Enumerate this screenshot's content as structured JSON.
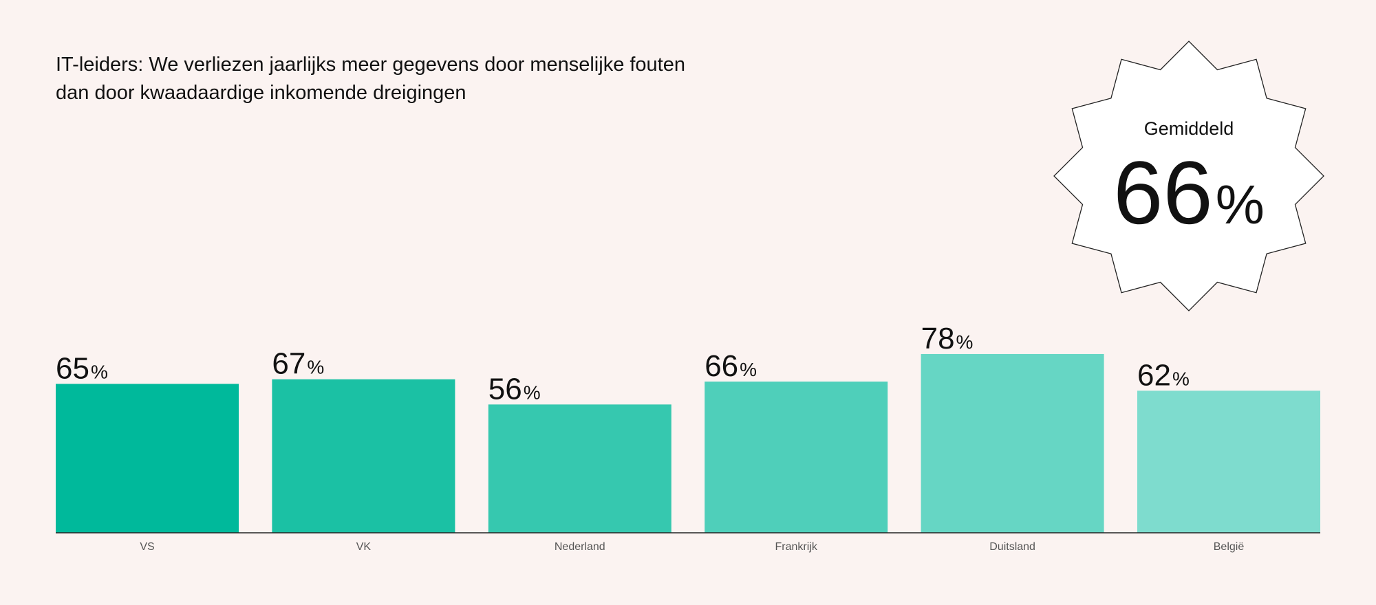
{
  "title_lines": [
    "IT-leiders: We verliezen jaarlijks meer gegevens door menselijke fouten",
    "dan door kwaadaardige inkomende dreigingen"
  ],
  "badge": {
    "label": "Gemiddeld",
    "value": "66",
    "unit": "%"
  },
  "chart_data": {
    "type": "bar",
    "title": "IT-leiders: We verliezen jaarlijks meer gegevens door menselijke fouten dan door kwaadaardige inkomende dreigingen",
    "xlabel": "",
    "ylabel": "",
    "unit": "%",
    "categories": [
      "VS",
      "VK",
      "Nederland",
      "Frankrijk",
      "Duitsland",
      "België"
    ],
    "values": [
      65,
      67,
      56,
      66,
      78,
      62
    ],
    "bar_colors": [
      "#00b99b",
      "#1bc1a4",
      "#36c8af",
      "#4fcfba",
      "#66d6c4",
      "#7edcce"
    ],
    "ylim": [
      0,
      78
    ],
    "grid": false,
    "legend": "none",
    "average": 66
  }
}
